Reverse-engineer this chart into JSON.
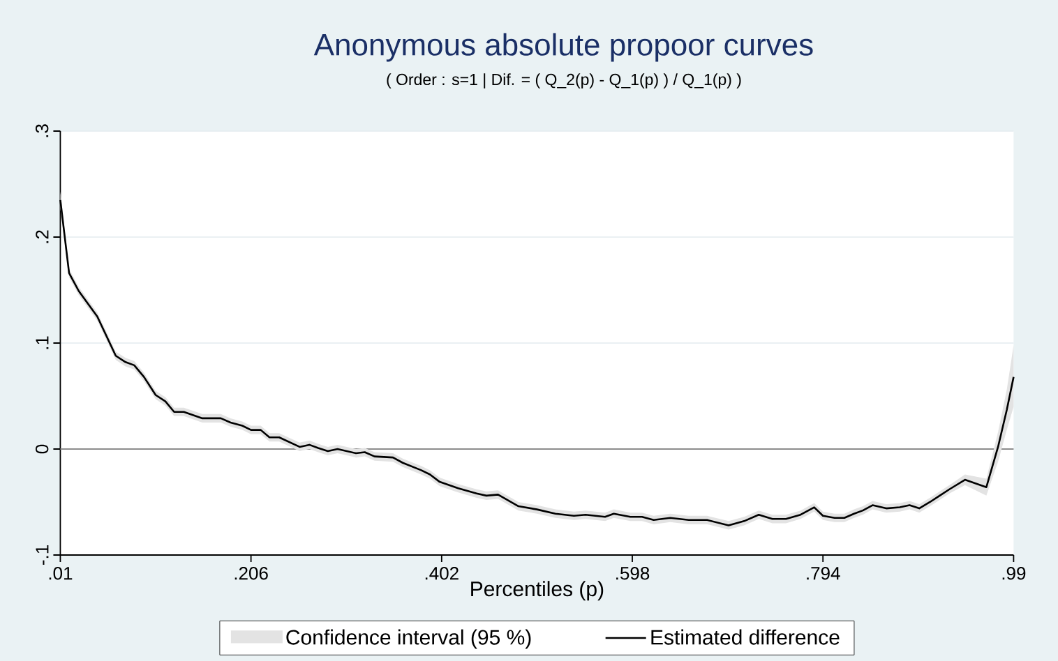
{
  "chart_data": {
    "type": "line",
    "title": "Anonymous absolute propoor curves",
    "subtitle": "( Order : s=1 | Dif. = ( Q_2(p) - Q_1(p) ) / Q_1(p) )",
    "xlabel": "Percentiles (p)",
    "x": [
      0.01,
      0.019,
      0.029,
      0.048,
      0.067,
      0.077,
      0.086,
      0.096,
      0.108,
      0.118,
      0.127,
      0.137,
      0.156,
      0.175,
      0.185,
      0.197,
      0.206,
      0.216,
      0.225,
      0.235,
      0.256,
      0.266,
      0.275,
      0.285,
      0.295,
      0.314,
      0.323,
      0.333,
      0.352,
      0.362,
      0.381,
      0.39,
      0.4,
      0.419,
      0.438,
      0.448,
      0.46,
      0.481,
      0.5,
      0.519,
      0.538,
      0.55,
      0.57,
      0.579,
      0.596,
      0.608,
      0.62,
      0.637,
      0.656,
      0.675,
      0.697,
      0.713,
      0.728,
      0.742,
      0.756,
      0.771,
      0.785,
      0.794,
      0.806,
      0.816,
      0.826,
      0.835,
      0.845,
      0.859,
      0.873,
      0.883,
      0.893,
      0.904,
      0.914,
      0.924,
      0.94,
      0.962,
      0.974,
      0.983,
      0.99
    ],
    "series": [
      {
        "name": "Estimated difference",
        "color": "#000000",
        "lower": [
          0.227,
          0.162,
          0.145,
          0.121,
          0.084,
          0.078,
          0.075,
          0.064,
          0.047,
          0.041,
          0.031,
          0.031,
          0.025,
          0.025,
          0.021,
          0.018,
          0.014,
          0.014,
          0.007,
          0.007,
          -0.002,
          0,
          -0.003,
          -0.006,
          -0.004,
          -0.008,
          -0.007,
          -0.011,
          -0.012,
          -0.017,
          -0.024,
          -0.028,
          -0.035,
          -0.041,
          -0.046,
          -0.048,
          -0.047,
          -0.058,
          -0.061,
          -0.065,
          -0.067,
          -0.066,
          -0.068,
          -0.065,
          -0.068,
          -0.068,
          -0.071,
          -0.069,
          -0.071,
          -0.071,
          -0.076,
          -0.072,
          -0.066,
          -0.07,
          -0.07,
          -0.066,
          -0.059,
          -0.067,
          -0.069,
          -0.069,
          -0.065,
          -0.062,
          -0.057,
          -0.06,
          -0.059,
          -0.057,
          -0.06,
          -0.054,
          -0.048,
          -0.042,
          -0.034,
          -0.044,
          -0.012,
          0.018,
          0.04
        ],
        "upper": [
          0.243,
          0.17,
          0.153,
          0.129,
          0.092,
          0.086,
          0.083,
          0.072,
          0.055,
          0.049,
          0.039,
          0.039,
          0.033,
          0.033,
          0.029,
          0.026,
          0.022,
          0.022,
          0.015,
          0.015,
          0.006,
          0.008,
          0.005,
          0.002,
          0.004,
          0,
          0.001,
          -0.003,
          -0.004,
          -0.009,
          -0.016,
          -0.02,
          -0.027,
          -0.033,
          -0.038,
          -0.04,
          -0.039,
          -0.05,
          -0.053,
          -0.057,
          -0.059,
          -0.058,
          -0.06,
          -0.057,
          -0.06,
          -0.06,
          -0.063,
          -0.061,
          -0.063,
          -0.063,
          -0.068,
          -0.064,
          -0.058,
          -0.062,
          -0.062,
          -0.058,
          -0.051,
          -0.059,
          -0.061,
          -0.061,
          -0.057,
          -0.054,
          -0.049,
          -0.052,
          -0.051,
          -0.049,
          -0.052,
          -0.046,
          -0.04,
          -0.034,
          -0.024,
          -0.028,
          0.016,
          0.056,
          0.098
        ],
        "values": [
          0.235,
          0.166,
          0.149,
          0.125,
          0.088,
          0.082,
          0.079,
          0.068,
          0.051,
          0.045,
          0.035,
          0.035,
          0.029,
          0.029,
          0.025,
          0.022,
          0.018,
          0.018,
          0.011,
          0.011,
          0.002,
          0.004,
          0.001,
          -0.002,
          0,
          -0.004,
          -0.003,
          -0.007,
          -0.008,
          -0.013,
          -0.02,
          -0.024,
          -0.031,
          -0.037,
          -0.042,
          -0.044,
          -0.043,
          -0.054,
          -0.057,
          -0.061,
          -0.063,
          -0.062,
          -0.064,
          -0.061,
          -0.064,
          -0.064,
          -0.067,
          -0.065,
          -0.067,
          -0.067,
          -0.072,
          -0.068,
          -0.062,
          -0.066,
          -0.066,
          -0.062,
          -0.055,
          -0.063,
          -0.065,
          -0.065,
          -0.061,
          -0.058,
          -0.053,
          -0.056,
          -0.055,
          -0.053,
          -0.056,
          -0.05,
          -0.044,
          -0.038,
          -0.029,
          -0.036,
          0.002,
          0.037,
          0.068
        ]
      }
    ],
    "xlim": [
      0.01,
      0.99
    ],
    "xticks": [
      {
        "value": 0.01,
        "label": ".01"
      },
      {
        "value": 0.206,
        "label": ".206"
      },
      {
        "value": 0.402,
        "label": ".402"
      },
      {
        "value": 0.598,
        "label": ".598"
      },
      {
        "value": 0.794,
        "label": ".794"
      },
      {
        "value": 0.99,
        "label": ".99"
      }
    ],
    "ylim": [
      -0.1,
      0.3
    ],
    "yticks": [
      {
        "value": -0.1,
        "label": "-.1"
      },
      0,
      {
        "value": 0.1,
        "label": ".1"
      },
      {
        "value": 0.2,
        "label": ".2"
      },
      {
        "value": 0.3,
        "label": ".3"
      }
    ],
    "annotations": [
      "Confidence interval (95 %)"
    ],
    "ref_lines": [
      {
        "axis": "y",
        "value": 0,
        "color": "#8c8c8c"
      }
    ],
    "grid": "y",
    "legend": "bottom",
    "marker": "none",
    "line_style": "solid"
  }
}
